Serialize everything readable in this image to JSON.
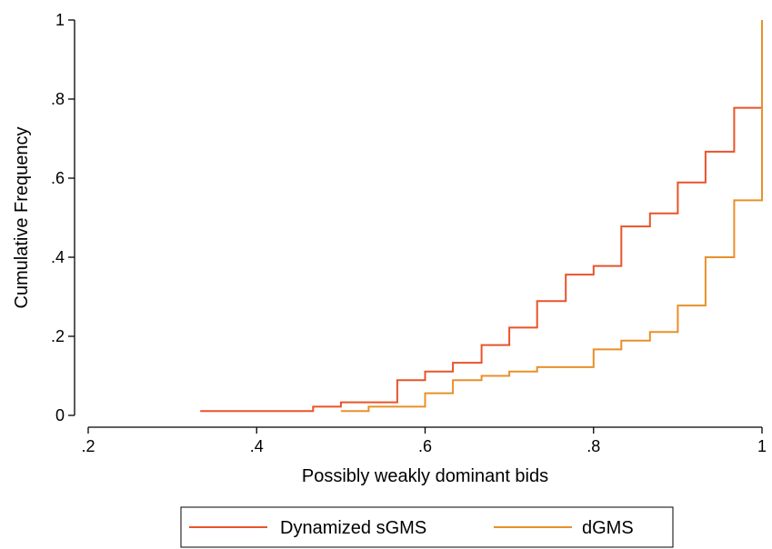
{
  "chart_data": {
    "type": "line",
    "step": true,
    "xlabel": "Possibly weakly dominant bids",
    "ylabel": "Cumulative Frequency",
    "xlim": [
      0.2,
      1.0
    ],
    "ylim": [
      0,
      1.0
    ],
    "x_ticks": [
      0.2,
      0.4,
      0.6,
      0.8,
      1.0
    ],
    "x_tick_labels": [
      ".2",
      ".4",
      ".6",
      ".8",
      "1"
    ],
    "y_ticks": [
      0,
      0.2,
      0.4,
      0.6,
      0.8,
      1.0
    ],
    "y_tick_labels": [
      "0",
      ".2",
      ".4",
      ".6",
      ".8",
      "1"
    ],
    "grid": false,
    "legend_position": "bottom",
    "series": [
      {
        "name": "Dynamized sGMS",
        "color": "#e8542a",
        "x": [
          0.333,
          0.467,
          0.5,
          0.567,
          0.6,
          0.633,
          0.667,
          0.7,
          0.733,
          0.767,
          0.8,
          0.833,
          0.867,
          0.9,
          0.933,
          0.967,
          1.0
        ],
        "y": [
          0.011,
          0.022,
          0.033,
          0.089,
          0.111,
          0.133,
          0.178,
          0.222,
          0.289,
          0.356,
          0.378,
          0.478,
          0.511,
          0.589,
          0.667,
          0.778,
          1.0
        ]
      },
      {
        "name": "dGMS",
        "color": "#e8902a",
        "x": [
          0.5,
          0.533,
          0.6,
          0.633,
          0.667,
          0.7,
          0.733,
          0.8,
          0.833,
          0.867,
          0.9,
          0.933,
          0.967,
          1.0
        ],
        "y": [
          0.011,
          0.022,
          0.056,
          0.089,
          0.1,
          0.111,
          0.122,
          0.167,
          0.189,
          0.211,
          0.278,
          0.4,
          0.544,
          1.0
        ]
      }
    ]
  }
}
